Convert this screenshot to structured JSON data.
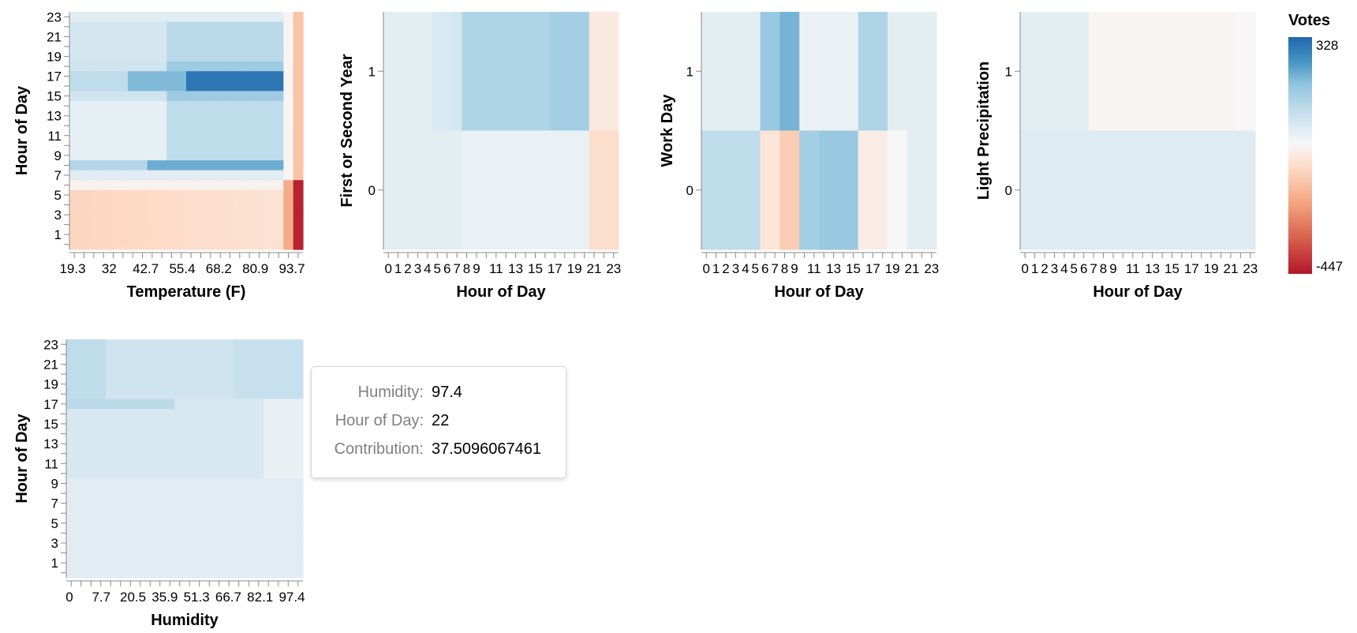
{
  "legend": {
    "title": "Votes",
    "max_label": "328",
    "min_label": "-447",
    "max": 328,
    "min": -447,
    "scheme": "redblue"
  },
  "tooltip": [
    {
      "key": "Humidity:",
      "value": "97.4"
    },
    {
      "key": "Hour of Day:",
      "value": "22"
    },
    {
      "key": "Contribution:",
      "value": "37.5096067461"
    }
  ],
  "chart_data": [
    {
      "type": "heatmap",
      "xlabel": "Temperature (F)",
      "ylabel": "Hour of Day",
      "xticks": [
        "19.3",
        "32",
        "42.7",
        "55.4",
        "68.2",
        "80.9",
        "93.7"
      ],
      "yticks": [
        "1",
        "3",
        "5",
        "7",
        "9",
        "11",
        "13",
        "15",
        "17",
        "19",
        "21",
        "23"
      ],
      "x_bins": 24,
      "y": [
        0,
        23
      ]
    },
    {
      "type": "heatmap",
      "xlabel": "Hour of Day",
      "ylabel": "First or Second Year",
      "xticks": [
        "0",
        "1",
        "2",
        "3",
        "4",
        "5",
        "6",
        "7",
        "8",
        "9",
        "11",
        "13",
        "15",
        "17",
        "19",
        "21",
        "23"
      ],
      "yticks": [
        "0",
        "1"
      ],
      "rows": [
        {
          "y": 1,
          "values": [
            20,
            20,
            20,
            20,
            20,
            40,
            40,
            50,
            120,
            120,
            120,
            120,
            120,
            120,
            120,
            120,
            120,
            140,
            140,
            140,
            140,
            -60,
            -60,
            -60
          ]
        },
        {
          "y": 0,
          "values": [
            20,
            20,
            20,
            20,
            20,
            20,
            20,
            20,
            5,
            5,
            5,
            5,
            5,
            5,
            5,
            5,
            5,
            5,
            5,
            5,
            5,
            -90,
            -90,
            -90
          ]
        }
      ]
    },
    {
      "type": "heatmap",
      "xlabel": "Hour of Day",
      "ylabel": "Work Day",
      "xticks": [
        "0",
        "1",
        "2",
        "3",
        "4",
        "5",
        "6",
        "7",
        "8",
        "9",
        "11",
        "13",
        "15",
        "17",
        "19",
        "21",
        "23"
      ],
      "yticks": [
        "0",
        "1"
      ],
      "rows": [
        {
          "y": 1,
          "values": [
            20,
            20,
            20,
            20,
            20,
            20,
            160,
            160,
            200,
            200,
            5,
            5,
            5,
            5,
            5,
            5,
            120,
            120,
            120,
            20,
            20,
            20,
            20,
            20
          ]
        },
        {
          "y": 0,
          "values": [
            90,
            90,
            90,
            90,
            90,
            90,
            -70,
            -70,
            -130,
            -130,
            140,
            140,
            160,
            160,
            160,
            160,
            -50,
            -50,
            -50,
            -20,
            -20,
            20,
            20,
            20
          ]
        }
      ]
    },
    {
      "type": "heatmap",
      "xlabel": "Hour of Day",
      "ylabel": "Light Precipitation",
      "xticks": [
        "0",
        "1",
        "2",
        "3",
        "4",
        "5",
        "6",
        "7",
        "8",
        "9",
        "11",
        "13",
        "15",
        "17",
        "19",
        "21",
        "23"
      ],
      "yticks": [
        "0",
        "1"
      ],
      "rows": [
        {
          "y": 1,
          "values": [
            20,
            20,
            20,
            20,
            20,
            20,
            20,
            -30,
            -30,
            -30,
            -30,
            -30,
            -30,
            -30,
            -30,
            -30,
            -30,
            -30,
            -30,
            -30,
            -30,
            -30,
            -20,
            -20
          ]
        },
        {
          "y": 0,
          "values": [
            30,
            30,
            30,
            30,
            30,
            30,
            30,
            30,
            30,
            30,
            30,
            30,
            30,
            30,
            30,
            30,
            30,
            30,
            30,
            30,
            30,
            30,
            30,
            30
          ]
        }
      ]
    },
    {
      "type": "heatmap",
      "xlabel": "Humidity",
      "ylabel": "Hour of Day",
      "xticks": [
        "0",
        "7.7",
        "20.5",
        "35.9",
        "51.3",
        "66.7",
        "82.1",
        "97.4"
      ],
      "yticks": [
        "1",
        "3",
        "5",
        "7",
        "9",
        "11",
        "13",
        "15",
        "17",
        "19",
        "21",
        "23"
      ],
      "x_bins": 24,
      "y": [
        0,
        23
      ],
      "highlight": {
        "Humidity": 97.4,
        "Hour of Day": 22,
        "Contribution": 37.5096067461
      }
    }
  ]
}
